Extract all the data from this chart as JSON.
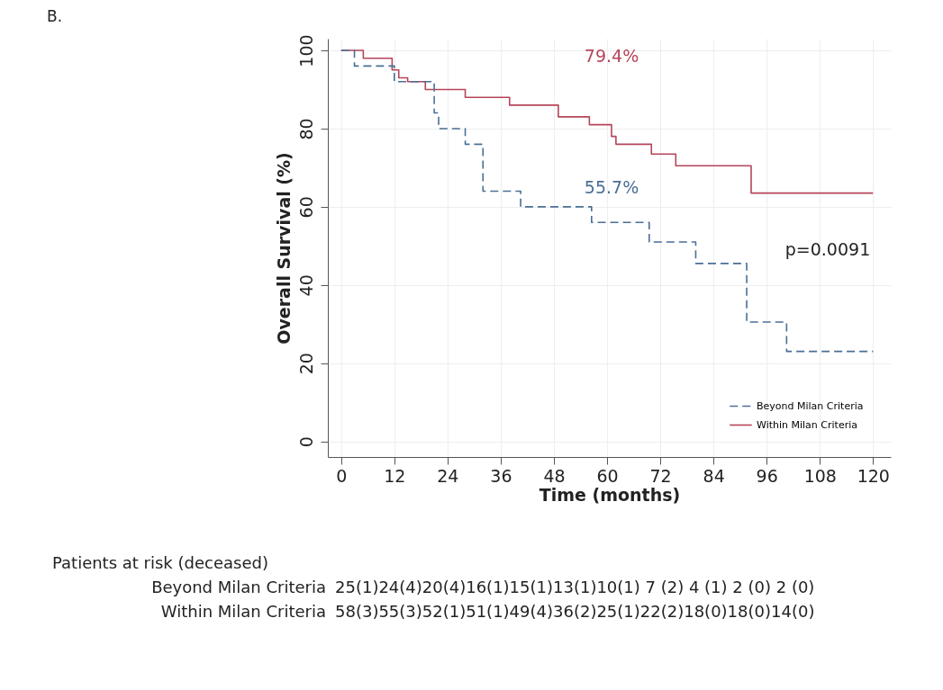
{
  "chart_data": {
    "type": "step",
    "title": "B.",
    "xlabel": "Time (months)",
    "ylabel": "Overall Survival (%)",
    "xlim": [
      -3,
      124
    ],
    "xticks": [
      0,
      12,
      24,
      36,
      48,
      60,
      72,
      84,
      96,
      108,
      120
    ],
    "ylim": [
      -4,
      103
    ],
    "yticks": [
      0,
      20,
      40,
      60,
      80,
      100
    ],
    "grid": true,
    "legend": "bottom right",
    "series": [
      {
        "name": "Beyond Milan Criteria",
        "color": "#4a6f96",
        "line_style": "dashed",
        "x": [
          0,
          3,
          12,
          21,
          22,
          28,
          32,
          40.5,
          56.5,
          69.5,
          80,
          91.5,
          100.5,
          120
        ],
        "values": [
          100,
          96,
          92,
          84,
          80,
          76,
          64,
          60,
          56,
          51,
          45.5,
          30.5,
          23,
          23
        ]
      },
      {
        "name": "Within Milan Criteria",
        "color": "#b5455a",
        "line_style": "solid",
        "x": [
          0,
          5,
          11.5,
          13,
          15,
          19,
          28,
          38,
          49,
          56,
          61,
          62,
          70,
          75.5,
          92.5,
          120
        ],
        "values": [
          100,
          98,
          95,
          93,
          92,
          90,
          88,
          86,
          83,
          81,
          78,
          76,
          73.5,
          70.5,
          63.5,
          63.5
        ]
      }
    ],
    "annotations": [
      "79.4%",
      "55.7%",
      "p=0.0091",
      "Patients at risk (deceased)",
      "Beyond Milan Criteria",
      "25(1)24(4)20(4)16(1)15(1)13(1)10(1) 7 (2) 4 (1) 2 (0) 2 (0)",
      "Within Milan Criteria",
      "58(3)55(3)52(1)51(1)49(4)36(2)25(1)22(2)18(0)18(0)14(0)"
    ]
  }
}
